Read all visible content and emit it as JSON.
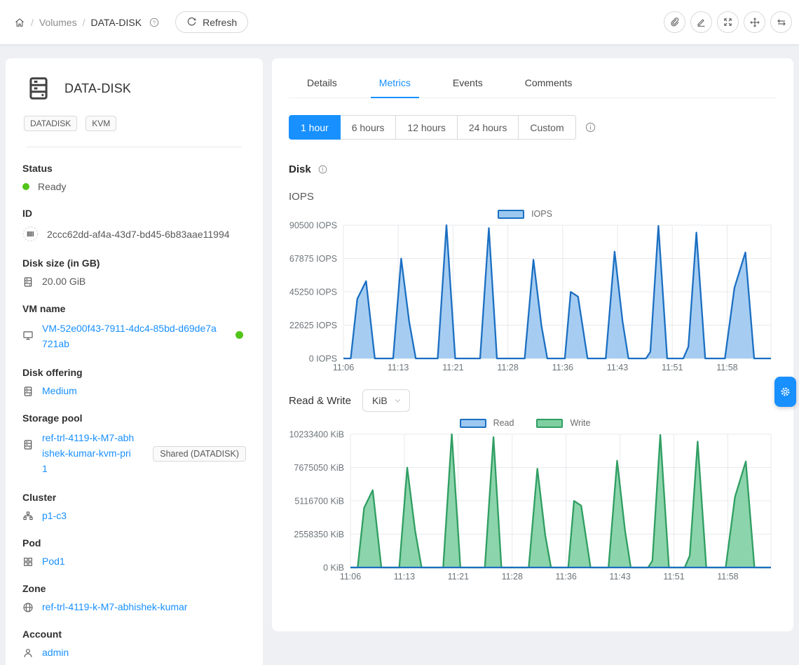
{
  "breadcrumb": {
    "items": [
      "Volumes",
      "DATA-DISK"
    ],
    "separator": "/",
    "refresh_label": "Refresh"
  },
  "header_actions": {
    "icons": [
      "paperclip",
      "edit",
      "resize-expand",
      "move",
      "swap"
    ]
  },
  "sidebar": {
    "title": "DATA-DISK",
    "tags": [
      "DATADISK",
      "KVM"
    ],
    "status": {
      "label": "Status",
      "value": "Ready"
    },
    "id": {
      "label": "ID",
      "value": "2ccc62dd-af4a-43d7-bd45-6b83aae11994"
    },
    "disk_size": {
      "label": "Disk size (in GB)",
      "value": "20.00 GiB"
    },
    "vm_name": {
      "label": "VM name",
      "value": "VM-52e00f43-7911-4dc4-85bd-d69de7a721ab"
    },
    "disk_offering": {
      "label": "Disk offering",
      "value": "Medium"
    },
    "storage_pool": {
      "label": "Storage pool",
      "value": "ref-trl-4119-k-M7-abhishek-kumar-kvm-pri1",
      "badge": "Shared (DATADISK)"
    },
    "cluster": {
      "label": "Cluster",
      "value": "p1-c3"
    },
    "pod": {
      "label": "Pod",
      "value": "Pod1"
    },
    "zone": {
      "label": "Zone",
      "value": "ref-trl-4119-k-M7-abhishek-kumar"
    },
    "account": {
      "label": "Account",
      "value": "admin"
    }
  },
  "tabs": {
    "items": [
      "Details",
      "Metrics",
      "Events",
      "Comments"
    ],
    "active": "Metrics"
  },
  "time_range": {
    "options": [
      "1 hour",
      "6 hours",
      "12 hours",
      "24 hours",
      "Custom"
    ],
    "selected": "1 hour"
  },
  "metrics": {
    "section_title": "Disk",
    "iops_title": "IOPS",
    "rw_title": "Read & Write",
    "unit_selected": "KiB"
  },
  "colors": {
    "accent": "#1890ff",
    "link": "#1890ff",
    "status_ready": "#52c41a",
    "iops_stroke": "#1b6fc2",
    "iops_fill": "#9cc8f0",
    "write_stroke": "#2f9e62",
    "write_fill": "#80cfa2"
  },
  "chart_data": [
    {
      "type": "area",
      "title": "IOPS",
      "xlabel": "time of day",
      "ylabel": "IOPS",
      "x_unit": "minutes after 11:00",
      "xlim": [
        6,
        64.5
      ],
      "ylim": [
        0,
        90500
      ],
      "grid": true,
      "legend_position": "top-center",
      "xticks": [
        {
          "v": 6,
          "label": "11:06"
        },
        {
          "v": 13.5,
          "label": "11:13"
        },
        {
          "v": 21,
          "label": "11:21"
        },
        {
          "v": 28.5,
          "label": "11:28"
        },
        {
          "v": 36,
          "label": "11:36"
        },
        {
          "v": 43.5,
          "label": "11:43"
        },
        {
          "v": 51,
          "label": "11:51"
        },
        {
          "v": 58.5,
          "label": "11:58"
        }
      ],
      "yticks": [
        {
          "v": 0,
          "label": "0 IOPS"
        },
        {
          "v": 22625,
          "label": "22625 IOPS"
        },
        {
          "v": 45250,
          "label": "45250 IOPS"
        },
        {
          "v": 67875,
          "label": "67875 IOPS"
        },
        {
          "v": 90500,
          "label": "90500 IOPS"
        }
      ],
      "series": [
        {
          "name": "IOPS",
          "stroke": "#1b6fc2",
          "fill": "#9cc8f0",
          "points": [
            [
              6,
              0
            ],
            [
              7,
              0
            ],
            [
              7.9,
              40500
            ],
            [
              9.1,
              52500
            ],
            [
              10.3,
              0
            ],
            [
              12.8,
              0
            ],
            [
              13.9,
              67800
            ],
            [
              15,
              25000
            ],
            [
              15.9,
              0
            ],
            [
              18.9,
              0
            ],
            [
              20.1,
              90500
            ],
            [
              21.3,
              0
            ],
            [
              24.7,
              0
            ],
            [
              25.9,
              88500
            ],
            [
              27,
              0
            ],
            [
              30.8,
              0
            ],
            [
              32,
              67000
            ],
            [
              33.1,
              22000
            ],
            [
              33.9,
              0
            ],
            [
              36.3,
              0
            ],
            [
              37.1,
              45200
            ],
            [
              38.1,
              42000
            ],
            [
              39.4,
              0
            ],
            [
              41.9,
              0
            ],
            [
              43.1,
              72500
            ],
            [
              44.2,
              25000
            ],
            [
              45,
              0
            ],
            [
              47.4,
              0
            ],
            [
              48,
              4500
            ],
            [
              49.1,
              90000
            ],
            [
              50.3,
              0
            ],
            [
              52.5,
              0
            ],
            [
              53.2,
              8000
            ],
            [
              54.3,
              85500
            ],
            [
              55.5,
              0
            ],
            [
              58.2,
              0
            ],
            [
              59.5,
              48000
            ],
            [
              61,
              72000
            ],
            [
              62.2,
              0
            ],
            [
              64.5,
              0
            ]
          ]
        }
      ]
    },
    {
      "type": "area",
      "title": "Read & Write",
      "xlabel": "time of day",
      "ylabel": "KiB",
      "x_unit": "minutes after 11:00",
      "xlim": [
        6,
        64.5
      ],
      "ylim": [
        0,
        10233400
      ],
      "grid": true,
      "legend_position": "top-center",
      "xticks": [
        {
          "v": 6,
          "label": "11:06"
        },
        {
          "v": 13.5,
          "label": "11:13"
        },
        {
          "v": 21,
          "label": "11:21"
        },
        {
          "v": 28.5,
          "label": "11:28"
        },
        {
          "v": 36,
          "label": "11:36"
        },
        {
          "v": 43.5,
          "label": "11:43"
        },
        {
          "v": 51,
          "label": "11:51"
        },
        {
          "v": 58.5,
          "label": "11:58"
        }
      ],
      "yticks": [
        {
          "v": 0,
          "label": "0 KiB"
        },
        {
          "v": 2558350,
          "label": "2558350 KiB"
        },
        {
          "v": 5116700,
          "label": "5116700 KiB"
        },
        {
          "v": 7675050,
          "label": "7675050 KiB"
        },
        {
          "v": 10233400,
          "label": "10233400 KiB"
        }
      ],
      "series": [
        {
          "name": "Read",
          "stroke": "#1b6fc2",
          "fill": "#9cc8f0",
          "points": [
            [
              6,
              0
            ],
            [
              64.5,
              0
            ]
          ]
        },
        {
          "name": "Write",
          "stroke": "#2f9e62",
          "fill": "#80cfa2",
          "points": [
            [
              6,
              0
            ],
            [
              7,
              0
            ],
            [
              7.9,
              4580000
            ],
            [
              9.1,
              5937000
            ],
            [
              10.3,
              0
            ],
            [
              12.8,
              0
            ],
            [
              13.9,
              7667000
            ],
            [
              15,
              2827000
            ],
            [
              15.9,
              0
            ],
            [
              18.9,
              0
            ],
            [
              20.1,
              10233400
            ],
            [
              21.3,
              0
            ],
            [
              24.7,
              0
            ],
            [
              25.9,
              10007000
            ],
            [
              27,
              0
            ],
            [
              30.8,
              0
            ],
            [
              32,
              7576000
            ],
            [
              33.1,
              2488000
            ],
            [
              33.9,
              0
            ],
            [
              36.3,
              0
            ],
            [
              37.1,
              5111000
            ],
            [
              38.1,
              4749000
            ],
            [
              39.4,
              0
            ],
            [
              41.9,
              0
            ],
            [
              43.1,
              8198000
            ],
            [
              44.2,
              2827000
            ],
            [
              45,
              0
            ],
            [
              47.4,
              0
            ],
            [
              48,
              509000
            ],
            [
              49.1,
              10177000
            ],
            [
              50.3,
              0
            ],
            [
              52.5,
              0
            ],
            [
              53.2,
              905000
            ],
            [
              54.3,
              9668000
            ],
            [
              55.5,
              0
            ],
            [
              58.2,
              0
            ],
            [
              59.5,
              5428000
            ],
            [
              61,
              8141000
            ],
            [
              62.2,
              0
            ],
            [
              64.5,
              0
            ]
          ]
        }
      ]
    }
  ]
}
